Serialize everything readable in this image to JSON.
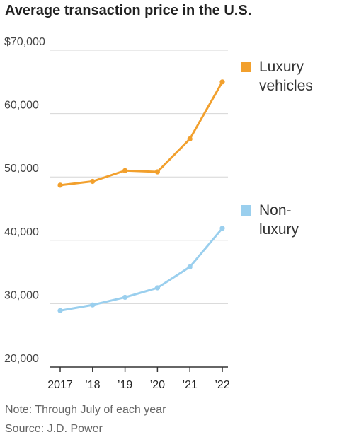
{
  "chart_data": {
    "type": "line",
    "title": "Average transaction price in the U.S.",
    "categories": [
      "2017",
      "’18",
      "’19",
      "’20",
      "’21",
      "’22"
    ],
    "y_tick_labels": [
      "$70,000",
      "60,000",
      "50,000",
      "40,000",
      "30,000",
      "20,000"
    ],
    "y_ticks": [
      70000,
      60000,
      50000,
      40000,
      30000,
      20000
    ],
    "ylim": [
      20000,
      70000
    ],
    "grid": true,
    "series": [
      {
        "legend_lines": [
          "Luxury",
          "vehicles"
        ],
        "color": "#F2A02D",
        "values": [
          48700,
          49300,
          51000,
          50800,
          56000,
          65000
        ]
      },
      {
        "legend_lines": [
          "Non-",
          "luxury"
        ],
        "color": "#9ACFEE",
        "values": [
          28900,
          29800,
          31000,
          32500,
          35800,
          41900
        ]
      }
    ],
    "note": "Note: Through July of each year",
    "source": "Source: J.D. Power"
  }
}
